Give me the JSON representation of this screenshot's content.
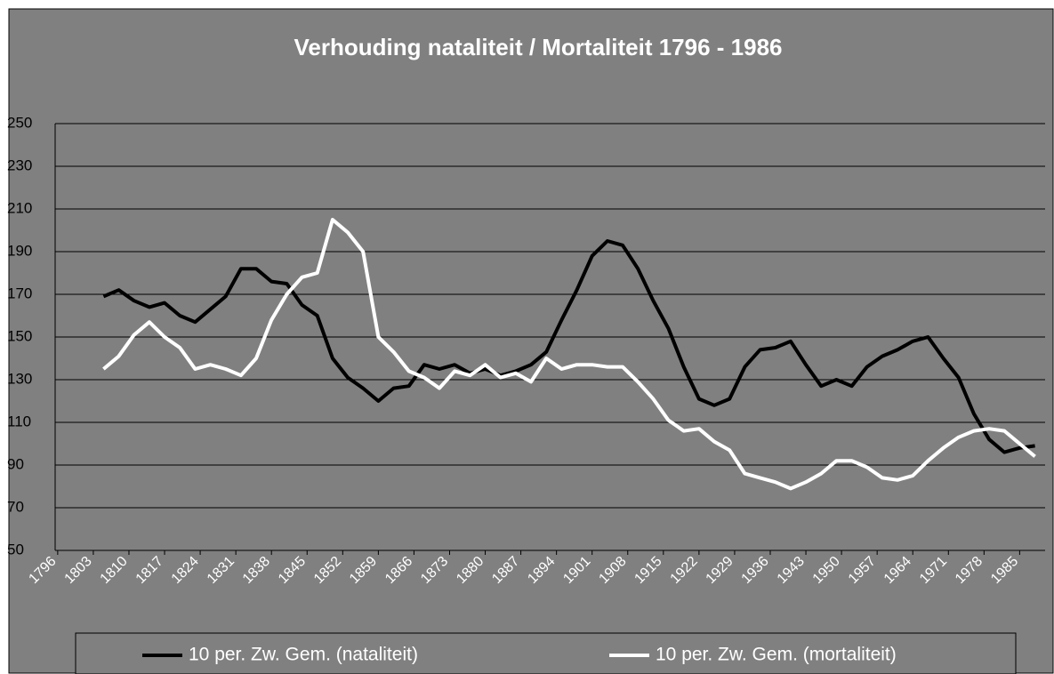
{
  "chart_data": {
    "type": "line",
    "title": "Verhouding nataliteit / Mortaliteit 1796 - 1986",
    "x": [
      1805,
      1808,
      1811,
      1814,
      1817,
      1820,
      1823,
      1826,
      1829,
      1832,
      1835,
      1838,
      1841,
      1844,
      1847,
      1850,
      1853,
      1856,
      1859,
      1862,
      1865,
      1868,
      1871,
      1874,
      1877,
      1880,
      1883,
      1886,
      1889,
      1892,
      1895,
      1898,
      1901,
      1904,
      1907,
      1910,
      1913,
      1916,
      1919,
      1922,
      1925,
      1928,
      1931,
      1934,
      1937,
      1940,
      1943,
      1946,
      1949,
      1952,
      1955,
      1958,
      1961,
      1964,
      1967,
      1970,
      1973,
      1976,
      1979,
      1982,
      1985,
      1988
    ],
    "series": [
      {
        "name": "10 per. Zw. Gem. (nataliteit)",
        "color": "#000000",
        "values": [
          169,
          172,
          167,
          164,
          166,
          160,
          157,
          163,
          169,
          182,
          182,
          176,
          175,
          165,
          160,
          140,
          131,
          126,
          120,
          126,
          127,
          137,
          135,
          137,
          133,
          135,
          132,
          134,
          137,
          143,
          158,
          172,
          188,
          195,
          193,
          182,
          167,
          154,
          136,
          121,
          118,
          121,
          136,
          144,
          145,
          148,
          137,
          127,
          130,
          127,
          136,
          141,
          144,
          148,
          150,
          140,
          131,
          114,
          102,
          96,
          98,
          99
        ]
      },
      {
        "name": "10 per. Zw. Gem. (mortaliteit)",
        "color": "#ffffff",
        "values": [
          135,
          141,
          151,
          157,
          150,
          145,
          135,
          137,
          135,
          132,
          140,
          158,
          170,
          178,
          180,
          205,
          199,
          190,
          150,
          143,
          134,
          131,
          126,
          134,
          132,
          137,
          131,
          133,
          129,
          140,
          135,
          137,
          137,
          136,
          136,
          129,
          121,
          111,
          106,
          107,
          101,
          97,
          86,
          84,
          82,
          79,
          82,
          86,
          92,
          92,
          89,
          84,
          83,
          85,
          92,
          98,
          103,
          106,
          107,
          106,
          100,
          94
        ]
      }
    ],
    "xlim": [
      1795.5,
      1990
    ],
    "xticks": [
      1796,
      1803,
      1810,
      1817,
      1824,
      1831,
      1838,
      1845,
      1852,
      1859,
      1866,
      1873,
      1880,
      1887,
      1894,
      1901,
      1908,
      1915,
      1922,
      1929,
      1936,
      1943,
      1950,
      1957,
      1964,
      1971,
      1978,
      1985
    ],
    "ylim": [
      50,
      250
    ],
    "yticks": [
      50,
      70,
      90,
      110,
      130,
      150,
      170,
      190,
      210,
      230,
      250
    ],
    "grid": true
  }
}
